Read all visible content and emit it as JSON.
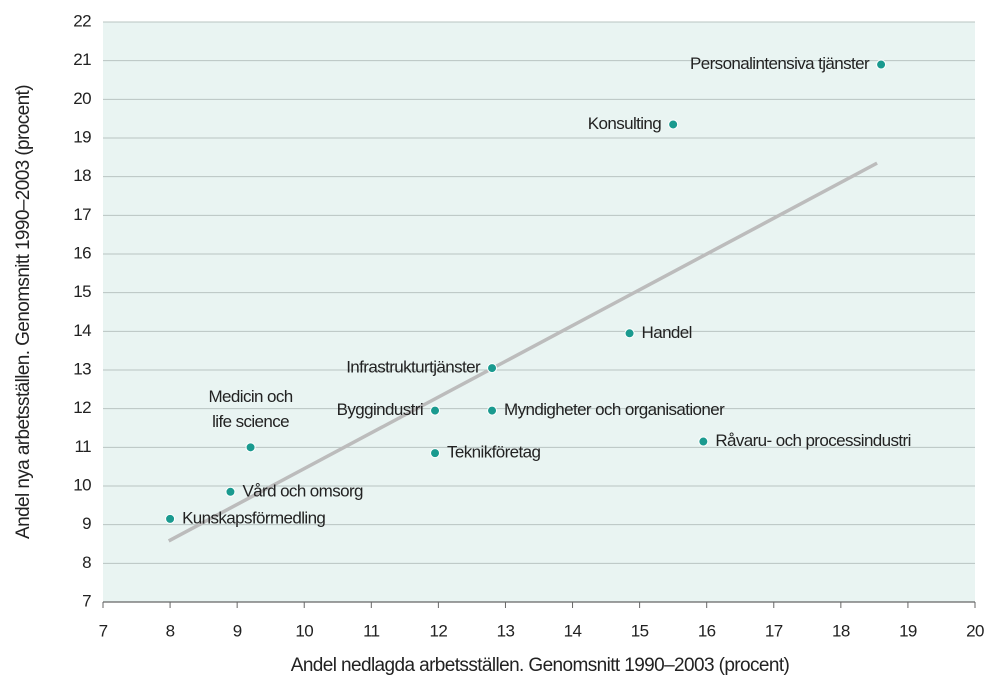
{
  "chart_data": {
    "type": "scatter",
    "xlabel": "Andel nedlagda arbetsställen. Genomsnitt 1990–2003 (procent)",
    "ylabel": "Andel nya arbetsställen. Genomsnitt 1990–2003 (procent)",
    "xlim": [
      7,
      20
    ],
    "ylim": [
      7,
      22
    ],
    "xticks": [
      7,
      8,
      9,
      10,
      11,
      12,
      13,
      14,
      15,
      16,
      17,
      18,
      19,
      20
    ],
    "yticks": [
      7,
      8,
      9,
      10,
      11,
      12,
      13,
      14,
      15,
      16,
      17,
      18,
      19,
      20,
      21,
      22
    ],
    "grid": true,
    "color": "#1a9a8f",
    "point_labels": [
      [
        "Personalintensiva tjänster"
      ],
      [
        "Konsulting"
      ],
      [
        "Handel"
      ],
      [
        "Infrastrukturtjänster"
      ],
      [
        "Byggindustri"
      ],
      [
        "Myndigheter och organisationer"
      ],
      [
        "Råvaru- och processindustri"
      ],
      [
        "Teknikföretag"
      ],
      [
        "Medicin och",
        "life science"
      ],
      [
        "Vård och omsorg"
      ],
      [
        "Kunskapsförmedling"
      ]
    ],
    "x": [
      18.6,
      15.5,
      14.85,
      12.8,
      11.95,
      12.8,
      15.95,
      11.95,
      9.2,
      8.9,
      8.0
    ],
    "values": [
      20.9,
      19.35,
      13.95,
      13.05,
      11.95,
      11.95,
      11.15,
      10.85,
      11.0,
      9.85,
      9.15
    ],
    "trend_line": {
      "color": "#bcbcbc",
      "x": [
        7.98,
        18.54
      ],
      "values": [
        8.58,
        18.35
      ]
    }
  }
}
